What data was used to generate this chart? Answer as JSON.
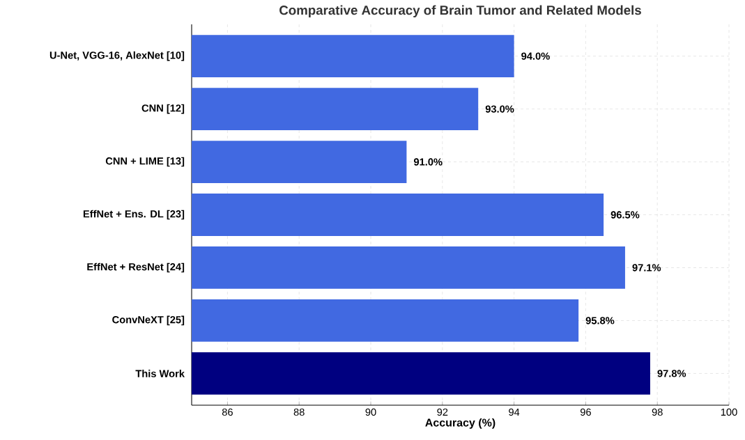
{
  "chart_data": {
    "type": "bar",
    "orientation": "horizontal",
    "title": "Comparative Accuracy of Brain Tumor and Related Models",
    "xlabel": "Accuracy (%)",
    "categories": [
      "U-Net, VGG-16, AlexNet [10]",
      "CNN [12]",
      "CNN + LIME [13]",
      "EffNet + Ens. DL [23]",
      "EffNet + ResNet [24]",
      "ConvNeXT [25]",
      "This Work"
    ],
    "values": [
      94.0,
      93.0,
      91.0,
      96.5,
      97.1,
      95.8,
      97.8
    ],
    "value_labels": [
      "94.0%",
      "93.0%",
      "91.0%",
      "96.5%",
      "97.1%",
      "95.8%",
      "97.8%"
    ],
    "colors": [
      "#4169e1",
      "#4169e1",
      "#4169e1",
      "#4169e1",
      "#4169e1",
      "#4169e1",
      "#000080"
    ],
    "xlim": [
      85,
      100
    ],
    "xticks": [
      86,
      88,
      90,
      92,
      94,
      96,
      98,
      100
    ],
    "grid": true
  }
}
